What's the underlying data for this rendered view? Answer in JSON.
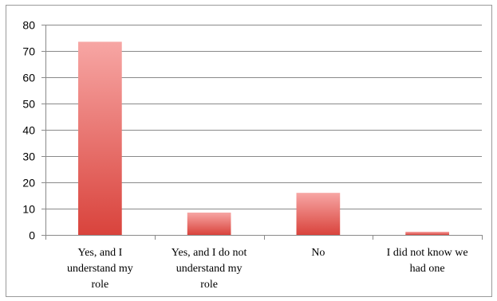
{
  "chart_data": {
    "type": "bar",
    "title": "",
    "xlabel": "",
    "ylabel": "",
    "ylim": [
      0,
      80
    ],
    "yticks": [
      0,
      10,
      20,
      30,
      40,
      50,
      60,
      70,
      80
    ],
    "grid": true,
    "legend": "none",
    "categories": [
      [
        "Yes, and I",
        "understand my",
        "role"
      ],
      [
        "Yes, and I do not",
        "understand my",
        "role"
      ],
      [
        "No"
      ],
      [
        "I did not know we",
        "had one"
      ]
    ],
    "values": [
      73.5,
      8.5,
      16,
      1.2
    ],
    "colors": {
      "bar_top": "#f7a6a4",
      "bar_bottom": "#d9433c",
      "grid": "#8a8a8a",
      "border": "#888888"
    }
  }
}
